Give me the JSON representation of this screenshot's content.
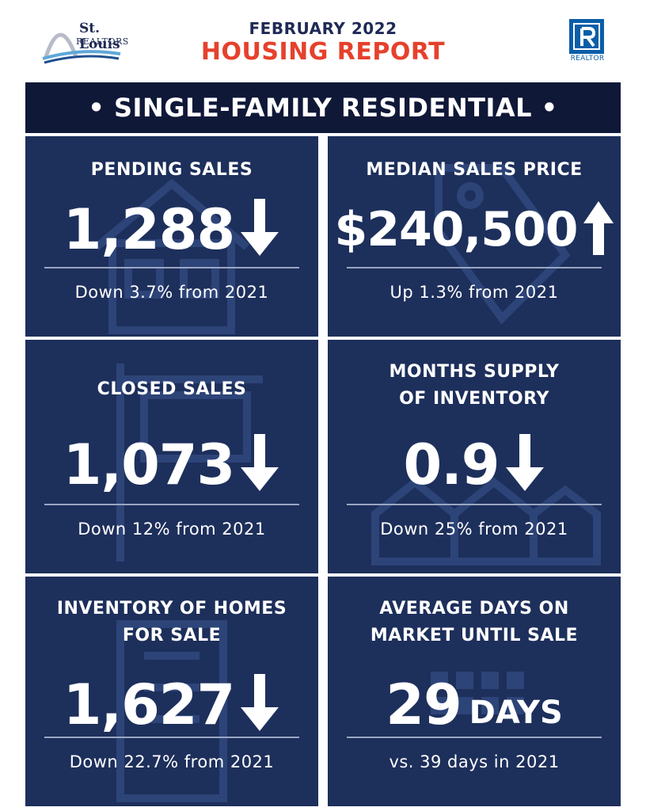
{
  "header": {
    "logo_left_line1": "St. Louis",
    "logo_left_line2": "REALTORS",
    "report_month": "FEBRUARY 2022",
    "report_title": "HOUSING REPORT",
    "logo_right_text": "REALTOR"
  },
  "banner": "• SINGLE-FAMILY RESIDENTIAL •",
  "tiles": [
    {
      "label_line1": "PENDING SALES",
      "label_line2": "",
      "value": "1,288",
      "unit": "",
      "trend": "down",
      "change": "Down 3.7% from 2021",
      "bg_icon": "house-icon"
    },
    {
      "label_line1": "MEDIAN SALES PRICE",
      "label_line2": "",
      "value": "$240,500",
      "unit": "",
      "trend": "up",
      "change": "Up 1.3% from 2021",
      "bg_icon": "price-tag-icon"
    },
    {
      "label_line1": "CLOSED SALES",
      "label_line2": "",
      "value": "1,073",
      "unit": "",
      "trend": "down",
      "change": "Down 12% from 2021",
      "bg_icon": "sold-sign-icon"
    },
    {
      "label_line1": "MONTHS SUPPLY",
      "label_line2": "OF INVENTORY",
      "value": "0.9",
      "unit": "",
      "trend": "down",
      "change": "Down 25% from 2021",
      "bg_icon": "houses-icon"
    },
    {
      "label_line1": "INVENTORY OF HOMES",
      "label_line2": "FOR SALE",
      "value": "1,627",
      "unit": "",
      "trend": "down",
      "change": "Down 22.7% from 2021",
      "bg_icon": "building-icon"
    },
    {
      "label_line1": "AVERAGE DAYS ON",
      "label_line2": "MARKET UNTIL SALE",
      "value": "29",
      "unit": "DAYS",
      "trend": "none",
      "change": "vs. 39 days in 2021",
      "bg_icon": "calendar-icon"
    }
  ],
  "colors": {
    "tile_bg": "#1d2f5b",
    "banner_bg": "#101838",
    "title_red": "#e5412c",
    "navy": "#1f2a55",
    "realtor_blue": "#0b5ea8"
  }
}
